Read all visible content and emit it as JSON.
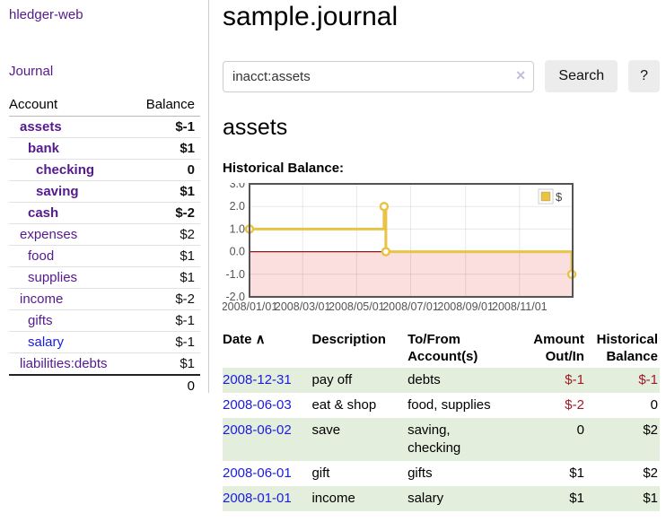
{
  "header": {
    "title": "sample.journal"
  },
  "search": {
    "value": "inacct:assets",
    "clear_icon": "×",
    "button_label": "Search",
    "help_label": "?"
  },
  "sidebar": {
    "brand": "hledger-web",
    "journal_link": "Journal",
    "accounts_table": {
      "headers": [
        "Account",
        "Balance"
      ],
      "rows": [
        {
          "account": "assets",
          "depth": 1,
          "bold": true,
          "balance": "$-1",
          "balance_class": "neg-strong"
        },
        {
          "account": "bank",
          "depth": 2,
          "bold": true,
          "balance": "$1",
          "balance_class": ""
        },
        {
          "account": "checking",
          "depth": 3,
          "bold": true,
          "balance": "0",
          "balance_class": ""
        },
        {
          "account": "saving",
          "depth": 3,
          "bold": true,
          "balance": "$1",
          "balance_class": ""
        },
        {
          "account": "cash",
          "depth": 2,
          "bold": true,
          "balance": "$-2",
          "balance_class": "neg-strong"
        },
        {
          "account": "expenses",
          "depth": 1,
          "bold": false,
          "balance": "$2",
          "balance_class": ""
        },
        {
          "account": "food",
          "depth": 2,
          "bold": false,
          "balance": "$1",
          "balance_class": ""
        },
        {
          "account": "supplies",
          "depth": 2,
          "bold": false,
          "balance": "$1",
          "balance_class": ""
        },
        {
          "account": "income",
          "depth": 1,
          "bold": false,
          "balance": "$-2",
          "balance_class": "neg-soft"
        },
        {
          "account": "gifts",
          "depth": 2,
          "bold": false,
          "balance": "$-1",
          "balance_class": "neg-soft"
        },
        {
          "account": "salary",
          "depth": 2,
          "bold": false,
          "balance": "$-1",
          "balance_class": "neg-soft",
          "link_style": "blue"
        },
        {
          "account": "liabilities:debts",
          "depth": 1,
          "bold": false,
          "balance": "$1",
          "balance_class": ""
        }
      ],
      "total": "0"
    }
  },
  "account_page": {
    "heading": "assets",
    "chart_label": "Historical Balance:"
  },
  "chart_data": {
    "type": "line",
    "title": "Historical Balance:",
    "legend_position": "top-right",
    "grid": true,
    "xlim": [
      0,
      365
    ],
    "ylim": [
      -2,
      3
    ],
    "y_ticks": [
      {
        "v": 3,
        "label": "3.0"
      },
      {
        "v": 2,
        "label": "2.0"
      },
      {
        "v": 1,
        "label": "1.0"
      },
      {
        "v": 0,
        "label": "0.0"
      },
      {
        "v": -1,
        "label": "-1.0"
      },
      {
        "v": -2,
        "label": "-2.0"
      }
    ],
    "x_ticks": [
      {
        "v": 0,
        "label": "2008/01/01"
      },
      {
        "v": 60,
        "label": "2008/03/01"
      },
      {
        "v": 121,
        "label": "2008/05/01"
      },
      {
        "v": 182,
        "label": "2008/07/01"
      },
      {
        "v": 244,
        "label": "2008/09/01"
      },
      {
        "v": 305,
        "label": "2008/11/01"
      }
    ],
    "series": [
      {
        "name": "$",
        "color": "#e9c345",
        "step": true,
        "points": [
          {
            "x": 0,
            "y": 1,
            "label": "2008-01-01",
            "marker": true
          },
          {
            "x": 152,
            "y": 2,
            "label": "2008-06-01",
            "marker": true
          },
          {
            "x": 153,
            "y": 2,
            "label": "2008-06-02",
            "marker": false
          },
          {
            "x": 154,
            "y": 0,
            "label": "2008-06-03",
            "marker": true
          },
          {
            "x": 364,
            "y": -1,
            "label": "2008-12-31",
            "marker": true
          }
        ]
      }
    ],
    "zero_line_color": "#8b1a1a",
    "negative_fill": "#fbdede"
  },
  "register": {
    "columns": [
      {
        "label": "Date",
        "sort_icon": "∧",
        "align": "left"
      },
      {
        "label": "Description",
        "align": "left"
      },
      {
        "label": "To/From Account(s)",
        "align": "left"
      },
      {
        "label": "Amount Out/In",
        "align": "right"
      },
      {
        "label": "Historical Balance",
        "align": "right"
      }
    ],
    "rows": [
      {
        "date": "2008-12-31",
        "description": "pay off",
        "accounts": "debts",
        "amount": "$-1",
        "amount_neg": true,
        "balance": "$-1",
        "balance_neg": true
      },
      {
        "date": "2008-06-03",
        "description": "eat & shop",
        "accounts": "food, supplies",
        "amount": "$-2",
        "amount_neg": true,
        "balance": "0",
        "balance_neg": false
      },
      {
        "date": "2008-06-02",
        "description": "save",
        "accounts": "saving, checking",
        "amount": "0",
        "amount_neg": false,
        "balance": "$2",
        "balance_neg": false
      },
      {
        "date": "2008-06-01",
        "description": "gift",
        "accounts": "gifts",
        "amount": "$1",
        "amount_neg": false,
        "balance": "$2",
        "balance_neg": false
      },
      {
        "date": "2008-01-01",
        "description": "income",
        "accounts": "salary",
        "amount": "$1",
        "amount_neg": false,
        "balance": "$1",
        "balance_neg": false
      }
    ]
  },
  "colors": {
    "link_purple": "#551a8b",
    "link_blue": "#1b1be0",
    "negative_strong": "#9e1a28",
    "negative_soft": "#bb6a6a",
    "row_stripe_green": "#e3efdc",
    "chart_series_gold": "#e9c345",
    "chart_negative_fill": "#fbdede",
    "chart_zero_line": "#8b1a1a",
    "button_gray": "#ececec"
  }
}
